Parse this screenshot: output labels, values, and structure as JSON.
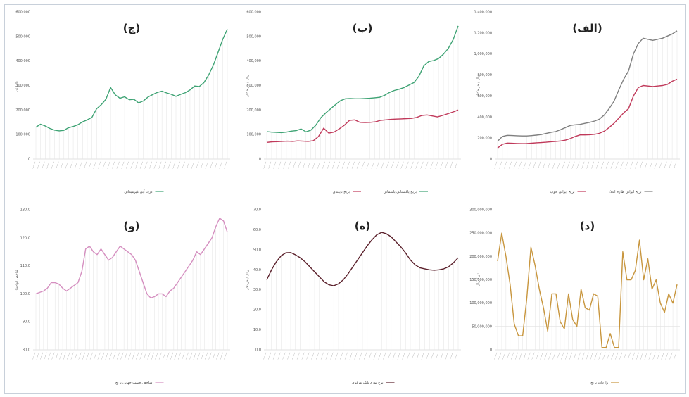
{
  "chart_data": [
    {
      "id": "j",
      "type": "line",
      "title": "(ج)",
      "ylabel": "ریال/ تن",
      "ylim": [
        0,
        600000
      ],
      "yticks": [
        "0",
        "100,000",
        "200,000",
        "300,000",
        "400,000",
        "500,000",
        "600,000"
      ],
      "grid": false,
      "series": [
        {
          "name": "ذرت آبی غیرمیدانی",
          "color": "#3ea374",
          "values": [
            130000,
            142000,
            135000,
            125000,
            118000,
            115000,
            117000,
            128000,
            133000,
            140000,
            152000,
            160000,
            170000,
            205000,
            222000,
            244000,
            292000,
            262000,
            248000,
            254000,
            242000,
            244000,
            229000,
            237000,
            253000,
            263000,
            272000,
            277000,
            270000,
            264000,
            256000,
            264000,
            271000,
            282000,
            298000,
            296000,
            312000,
            343000,
            383000,
            434000,
            488000,
            530000
          ]
        }
      ]
    },
    {
      "id": "b",
      "type": "line",
      "title": "(ب)",
      "ylabel": "ریال / هر هکتار",
      "ylim": [
        0,
        600000
      ],
      "yticks": [
        "0",
        "100,000",
        "200,000",
        "300,000",
        "400,000",
        "500,000",
        "600,000"
      ],
      "grid": false,
      "series": [
        {
          "name": "برنج پاکستانی باسماتی",
          "color": "#3ea374",
          "values": [
            112000,
            110000,
            109000,
            108000,
            110000,
            114000,
            116000,
            123000,
            111000,
            118000,
            138000,
            168000,
            188000,
            205000,
            222000,
            238000,
            246000,
            247000,
            246000,
            246000,
            247000,
            248000,
            250000,
            252000,
            260000,
            272000,
            280000,
            285000,
            292000,
            302000,
            312000,
            338000,
            380000,
            398000,
            402000,
            410000,
            428000,
            452000,
            488000,
            543000
          ]
        },
        {
          "name": "برنج تایلندی",
          "color": "#c0395a",
          "values": [
            68000,
            70000,
            71000,
            72000,
            73000,
            72000,
            74000,
            73000,
            72000,
            75000,
            92000,
            126000,
            106000,
            110000,
            123000,
            138000,
            158000,
            160000,
            150000,
            149000,
            150000,
            152000,
            158000,
            160000,
            162000,
            163000,
            164000,
            165000,
            166000,
            170000,
            178000,
            180000,
            176000,
            172000,
            178000,
            185000,
            192000,
            200000
          ]
        }
      ]
    },
    {
      "id": "alef",
      "type": "line",
      "title": "(الف)",
      "ylabel": "ریال / هر هکتار",
      "ylim": [
        0,
        1400000
      ],
      "yticks": [
        "0",
        "200,000",
        "400,000",
        "600,000",
        "800,000",
        "1,000,000",
        "1,200,000",
        "1,400,000"
      ],
      "grid": false,
      "series": [
        {
          "name": "برنج ایرانی طارم اعلاء",
          "color": "#7f7f7f",
          "values": [
            170000,
            215000,
            226000,
            224000,
            222000,
            220000,
            220000,
            223000,
            228000,
            233000,
            244000,
            254000,
            262000,
            280000,
            300000,
            320000,
            326000,
            330000,
            340000,
            350000,
            362000,
            380000,
            420000,
            480000,
            550000,
            660000,
            760000,
            840000,
            1000000,
            1100000,
            1150000,
            1140000,
            1130000,
            1140000,
            1150000,
            1170000,
            1190000,
            1220000
          ]
        },
        {
          "name": "برنج ایرانی خوب",
          "color": "#c0395a",
          "values": [
            105000,
            140000,
            152000,
            150000,
            148000,
            147000,
            148000,
            151000,
            155000,
            157000,
            160000,
            165000,
            168000,
            172000,
            180000,
            195000,
            215000,
            230000,
            230000,
            232000,
            236000,
            245000,
            265000,
            300000,
            340000,
            390000,
            440000,
            480000,
            600000,
            680000,
            700000,
            695000,
            690000,
            695000,
            700000,
            710000,
            740000,
            760000
          ]
        }
      ]
    },
    {
      "id": "w",
      "type": "line",
      "title": "(و)",
      "ylabel": "شاخص (واحد)",
      "ylim": [
        80,
        130
      ],
      "yticks": [
        "80.0",
        "90.0",
        "100.0",
        "110.0",
        "120.0",
        "130.0"
      ],
      "grid": false,
      "series": [
        {
          "name": "شاخص قیمت جهانی برنج",
          "color": "#d58fc0",
          "values": [
            100,
            100.5,
            101,
            102,
            104,
            104,
            103.5,
            102,
            101,
            102,
            103,
            104,
            108,
            116,
            117,
            115,
            114,
            116,
            114,
            112,
            113,
            115,
            117,
            116,
            115,
            114,
            112,
            108,
            104,
            100,
            98.5,
            99,
            100,
            100,
            99,
            101,
            102,
            104,
            106,
            108,
            110,
            112,
            115,
            114,
            116,
            118,
            120,
            124,
            127,
            126,
            122
          ]
        }
      ]
    },
    {
      "id": "h",
      "type": "line",
      "title": "(ه)",
      "ylabel": "ریال / هر دلار",
      "ylim": [
        0,
        70
      ],
      "yticks": [
        "0.0",
        "10.0",
        "20.0",
        "30.0",
        "40.0",
        "50.0",
        "60.0",
        "70.0"
      ],
      "grid": false,
      "series": [
        {
          "name": "نرخ تورم بانک مرکزی",
          "color": "#5a1f2a",
          "values": [
            35,
            40,
            44,
            47,
            48.5,
            48.6,
            47.5,
            46,
            44,
            41.5,
            39,
            36.5,
            34,
            32.5,
            32,
            33,
            35,
            38,
            41.5,
            45,
            48.5,
            52,
            55,
            57.5,
            58.7,
            58,
            56.5,
            54,
            51.5,
            48.5,
            45,
            42.5,
            41,
            40.5,
            40,
            39.8,
            40,
            40.5,
            41.5,
            43.5,
            46
          ]
        }
      ]
    },
    {
      "id": "d",
      "type": "line",
      "title": "(د)",
      "ylabel": "تن / ریال",
      "ylim": [
        0,
        300000000
      ],
      "yticks": [
        "0",
        "50,000,000",
        "100,000,000",
        "150,000,000",
        "200,000,000",
        "250,000,000",
        "300,000,000"
      ],
      "grid": false,
      "series": [
        {
          "name": "واردات برنج",
          "color": "#c8963e",
          "values": [
            190000000,
            250000000,
            200000000,
            140000000,
            55000000,
            30000000,
            30000000,
            110000000,
            220000000,
            180000000,
            130000000,
            90000000,
            40000000,
            120000000,
            120000000,
            60000000,
            45000000,
            120000000,
            65000000,
            50000000,
            130000000,
            90000000,
            85000000,
            120000000,
            115000000,
            5000000,
            5000000,
            35000000,
            5000000,
            5000000,
            210000000,
            150000000,
            150000000,
            170000000,
            235000000,
            150000000,
            195000000,
            130000000,
            150000000,
            100000000,
            80000000,
            120000000,
            100000000,
            140000000
          ]
        }
      ]
    }
  ]
}
